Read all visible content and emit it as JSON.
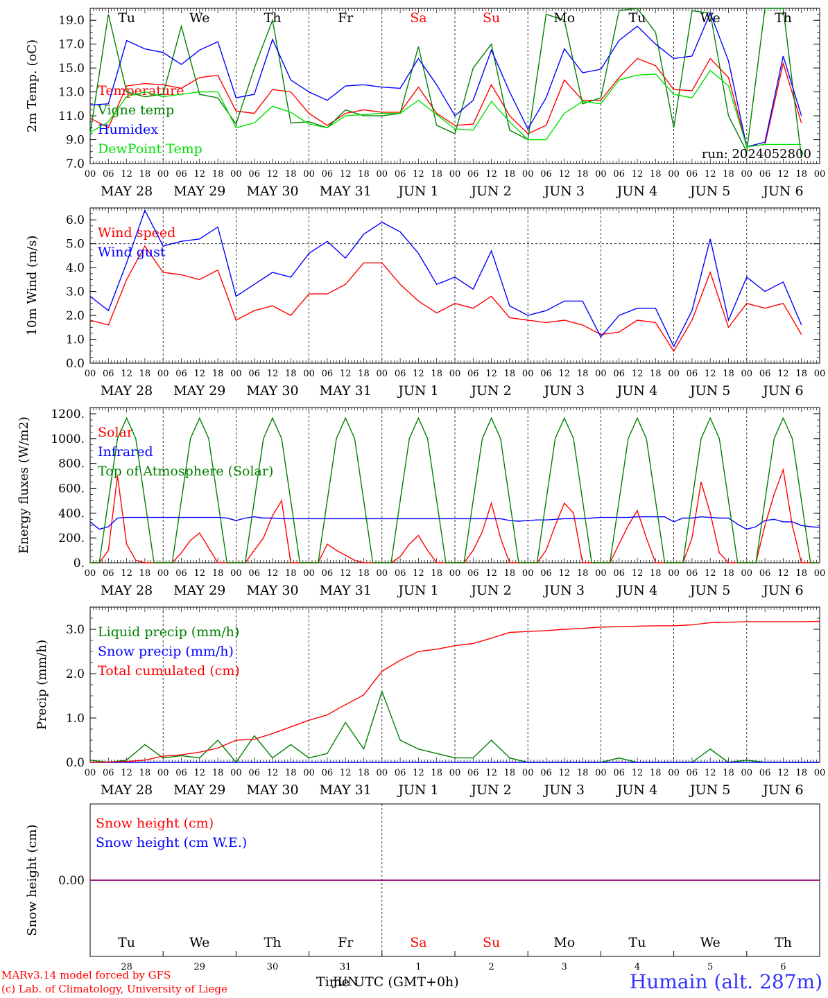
{
  "colors": {
    "red": "#ff0000",
    "blue": "#0000ff",
    "green": "#008000",
    "lightgreen": "#00e000",
    "purple": "#800080",
    "dark": "#000000"
  },
  "run_label": "run: 2024052800",
  "footer": {
    "model": "MARv3.14 model forced by GFS",
    "lab": "(c) Lab. of Climatology, University of Liege",
    "time_axis": "Time UTC (GMT+0h)",
    "station": "Humain (alt. 287m)"
  },
  "days": [
    {
      "name": "Tu",
      "date": "MAY 28",
      "num": "28",
      "weekend": false
    },
    {
      "name": "We",
      "date": "MAY 29",
      "num": "29",
      "weekend": false
    },
    {
      "name": "Th",
      "date": "MAY 30",
      "num": "30",
      "weekend": false
    },
    {
      "name": "Fr",
      "date": "MAY 31",
      "num": "31",
      "weekend": false
    },
    {
      "name": "Sa",
      "date": "JUN  1",
      "num": "1",
      "weekend": true
    },
    {
      "name": "Su",
      "date": "JUN  2",
      "num": "2",
      "weekend": true
    },
    {
      "name": "Mo",
      "date": "JUN  3",
      "num": "3",
      "weekend": false
    },
    {
      "name": "Tu",
      "date": "JUN  4",
      "num": "4",
      "weekend": false
    },
    {
      "name": "We",
      "date": "JUN  5",
      "num": "5",
      "weekend": false
    },
    {
      "name": "Th",
      "date": "JUN  6",
      "num": "6",
      "weekend": false
    }
  ],
  "month_label_bottom": "JUN",
  "hour_ticks": [
    "00",
    "06",
    "12",
    "18"
  ],
  "chart_data": [
    {
      "type": "line",
      "ylabel": "2m Temp. (oC)",
      "ylim": [
        7,
        20
      ],
      "yticks": [
        "7.0",
        "9.0",
        "11.0",
        "13.0",
        "15.0",
        "17.0",
        "19.0"
      ],
      "x_hours": [
        0,
        6,
        12,
        18,
        24,
        30,
        36,
        42,
        48,
        54,
        60,
        66,
        72,
        78,
        84,
        90,
        96,
        102,
        108,
        114,
        120,
        126,
        132,
        138,
        144,
        150,
        156,
        162,
        168,
        174,
        180,
        186,
        192,
        198,
        204,
        210,
        216,
        222,
        228,
        234
      ],
      "series": [
        {
          "name": "Temperature",
          "color": "#ff0000",
          "values": [
            10.8,
            10.0,
            13.5,
            13.7,
            13.6,
            13.3,
            14.2,
            14.4,
            11.4,
            11.2,
            13.2,
            13.0,
            11.2,
            10.2,
            11.2,
            11.5,
            11.3,
            11.3,
            13.4,
            11.2,
            10.2,
            10.3,
            13.6,
            11.0,
            9.5,
            10.2,
            14.0,
            12.3,
            12.3,
            14.2,
            15.8,
            15.2,
            13.2,
            13.1,
            15.8,
            14.2,
            8.4,
            8.6,
            15.4,
            10.4
          ]
        },
        {
          "name": "Vigne temp",
          "color": "#008000",
          "values": [
            9.5,
            19.5,
            13.0,
            12.6,
            12.8,
            18.5,
            12.8,
            12.5,
            10.3,
            15.0,
            19.0,
            10.4,
            10.5,
            10.0,
            11.5,
            11.0,
            11.0,
            11.2,
            16.8,
            10.2,
            9.5,
            15.0,
            17.0,
            9.8,
            9.0,
            19.5,
            19.0,
            12.0,
            12.5,
            19.8,
            20.0,
            18.0,
            10.0,
            19.8,
            19.6,
            11.0,
            8.0,
            20.0,
            20.0,
            7.5
          ]
        },
        {
          "name": "Humidex",
          "color": "#0000ff",
          "values": [
            11.9,
            12.0,
            17.3,
            16.6,
            16.3,
            15.3,
            16.5,
            17.2,
            12.5,
            12.8,
            17.4,
            14.0,
            13.0,
            12.3,
            13.5,
            13.6,
            13.4,
            13.3,
            15.8,
            13.6,
            11.0,
            12.3,
            16.5,
            13.0,
            9.9,
            12.5,
            16.6,
            14.6,
            14.9,
            17.3,
            18.5,
            17.0,
            15.8,
            16.0,
            19.6,
            15.6,
            8.4,
            8.8,
            16.0,
            11.0
          ]
        },
        {
          "name": "DewPoint Temp",
          "color": "#00e000",
          "values": [
            9.6,
            10.5,
            12.6,
            13.0,
            12.6,
            12.8,
            13.0,
            13.0,
            10.0,
            10.4,
            11.8,
            11.3,
            10.3,
            10.0,
            11.0,
            11.1,
            11.2,
            11.2,
            12.3,
            11.1,
            9.9,
            9.8,
            12.2,
            10.5,
            9.0,
            9.0,
            11.2,
            12.2,
            12.0,
            14.0,
            14.4,
            14.5,
            12.8,
            12.5,
            14.8,
            13.5,
            8.4,
            8.6,
            8.6,
            8.6
          ]
        }
      ]
    },
    {
      "type": "line",
      "ylabel": "10m Wind (m/s)",
      "ylim": [
        0,
        6.5
      ],
      "yticks": [
        "0.0",
        "1.0",
        "2.0",
        "3.0",
        "4.0",
        "5.0",
        "6.0"
      ],
      "x_hours": [
        0,
        6,
        12,
        18,
        24,
        30,
        36,
        42,
        48,
        54,
        60,
        66,
        72,
        78,
        84,
        90,
        96,
        102,
        108,
        114,
        120,
        126,
        132,
        138,
        144,
        150,
        156,
        162,
        168,
        174,
        180,
        186,
        192,
        198,
        204,
        210,
        216,
        222,
        228,
        234
      ],
      "series": [
        {
          "name": "Wind speed",
          "color": "#ff0000",
          "values": [
            1.8,
            1.6,
            3.5,
            4.9,
            3.8,
            3.7,
            3.5,
            3.9,
            1.8,
            2.2,
            2.4,
            2.0,
            2.9,
            2.9,
            3.3,
            4.2,
            4.2,
            3.3,
            2.6,
            2.1,
            2.5,
            2.3,
            2.8,
            1.9,
            1.8,
            1.7,
            1.8,
            1.6,
            1.2,
            1.3,
            1.8,
            1.7,
            0.5,
            1.8,
            3.8,
            1.5,
            2.5,
            2.3,
            2.5,
            1.2
          ]
        },
        {
          "name": "Wind gust",
          "color": "#0000ff",
          "values": [
            2.8,
            2.2,
            4.2,
            6.4,
            4.9,
            5.1,
            5.2,
            5.7,
            2.8,
            3.3,
            3.8,
            3.6,
            4.6,
            5.1,
            4.4,
            5.4,
            5.9,
            5.5,
            4.6,
            3.3,
            3.6,
            3.1,
            4.7,
            2.4,
            2.0,
            2.2,
            2.6,
            2.6,
            1.1,
            2.0,
            2.3,
            2.3,
            0.7,
            2.2,
            5.2,
            1.8,
            3.6,
            3.0,
            3.4,
            1.6
          ]
        }
      ]
    },
    {
      "type": "line",
      "ylabel": "Energy fluxes (W/m2)",
      "ylim": [
        0,
        1250
      ],
      "yticks": [
        "0.",
        "200.",
        "400.",
        "600.",
        "800.",
        "1000.",
        "1200."
      ],
      "x_hours": [
        0,
        3,
        6,
        9,
        12,
        15,
        18,
        21,
        24,
        27,
        30,
        33,
        36,
        39,
        42,
        45,
        48,
        51,
        54,
        57,
        60,
        63,
        66,
        69,
        72,
        75,
        78,
        81,
        84,
        87,
        90,
        93,
        96,
        99,
        102,
        105,
        108,
        111,
        114,
        117,
        120,
        123,
        126,
        129,
        132,
        135,
        138,
        141,
        144,
        147,
        150,
        153,
        156,
        159,
        162,
        165,
        168,
        171,
        174,
        177,
        180,
        183,
        186,
        189,
        192,
        195,
        198,
        201,
        204,
        207,
        210,
        213,
        216,
        219,
        222,
        225,
        228,
        231,
        234,
        237,
        240
      ],
      "series": [
        {
          "name": "Solar",
          "color": "#ff0000",
          "values": [
            0,
            0,
            100,
            700,
            150,
            20,
            0,
            0,
            0,
            0,
            80,
            180,
            240,
            120,
            0,
            0,
            0,
            0,
            100,
            200,
            380,
            500,
            0,
            0,
            0,
            0,
            150,
            100,
            60,
            20,
            0,
            0,
            0,
            0,
            50,
            150,
            220,
            100,
            0,
            0,
            0,
            0,
            100,
            250,
            480,
            200,
            0,
            0,
            0,
            0,
            100,
            300,
            480,
            400,
            0,
            0,
            0,
            0,
            150,
            300,
            420,
            200,
            0,
            0,
            0,
            0,
            200,
            650,
            400,
            80,
            0,
            0,
            0,
            0,
            300,
            550,
            750,
            300,
            0,
            0,
            0
          ]
        },
        {
          "name": "Infrared",
          "color": "#0000ff",
          "values": [
            330,
            270,
            290,
            360,
            365,
            365,
            365,
            365,
            365,
            365,
            365,
            365,
            365,
            365,
            365,
            360,
            340,
            360,
            370,
            360,
            360,
            355,
            355,
            355,
            355,
            355,
            355,
            355,
            355,
            355,
            355,
            355,
            355,
            355,
            355,
            355,
            355,
            355,
            355,
            355,
            355,
            355,
            355,
            355,
            355,
            355,
            340,
            335,
            340,
            345,
            345,
            350,
            355,
            355,
            355,
            360,
            365,
            365,
            365,
            365,
            370,
            370,
            370,
            370,
            330,
            360,
            360,
            370,
            365,
            360,
            360,
            310,
            270,
            290,
            340,
            350,
            330,
            330,
            300,
            290,
            285
          ]
        },
        {
          "name": "Top of Atmosphere (Solar)",
          "color": "#008000",
          "values": [
            0,
            0,
            500,
            1000,
            1165,
            1000,
            500,
            0,
            0,
            0,
            500,
            1000,
            1165,
            1000,
            500,
            0,
            0,
            0,
            500,
            1000,
            1165,
            1000,
            500,
            0,
            0,
            0,
            500,
            1000,
            1165,
            1000,
            500,
            0,
            0,
            0,
            500,
            1000,
            1165,
            1000,
            500,
            0,
            0,
            0,
            500,
            1000,
            1165,
            1000,
            500,
            0,
            0,
            0,
            500,
            1000,
            1165,
            1000,
            500,
            0,
            0,
            0,
            500,
            1000,
            1165,
            1000,
            500,
            0,
            0,
            0,
            500,
            1000,
            1165,
            1000,
            500,
            0,
            0,
            0,
            500,
            1000,
            1165,
            1000,
            500,
            0,
            0
          ]
        }
      ]
    },
    {
      "type": "line",
      "ylabel": "Precip (mm/h)",
      "ylim": [
        0,
        3.5
      ],
      "yticks": [
        "0.0",
        "1.0",
        "2.0",
        "3.0"
      ],
      "x_hours": [
        0,
        6,
        12,
        18,
        24,
        30,
        36,
        42,
        48,
        54,
        60,
        66,
        72,
        78,
        84,
        90,
        96,
        102,
        108,
        114,
        120,
        126,
        132,
        138,
        144,
        150,
        156,
        162,
        168,
        174,
        180,
        186,
        192,
        198,
        204,
        210,
        216,
        222,
        228,
        234,
        240
      ],
      "series": [
        {
          "name": "Liquid precip (mm/h)",
          "color": "#008000",
          "values": [
            0.05,
            0.0,
            0.05,
            0.4,
            0.1,
            0.15,
            0.1,
            0.5,
            0.0,
            0.6,
            0.1,
            0.4,
            0.1,
            0.2,
            0.9,
            0.3,
            1.6,
            0.5,
            0.3,
            0.2,
            0.1,
            0.1,
            0.5,
            0.1,
            0.0,
            0.0,
            0.0,
            0.0,
            0.0,
            0.1,
            0.0,
            0.0,
            0.0,
            0.0,
            0.3,
            0.0,
            0.05,
            0.0,
            0.0,
            0.0,
            0.0
          ]
        },
        {
          "name": "Snow precip (mm/h)",
          "color": "#0000ff",
          "values": [
            0,
            0,
            0,
            0,
            0,
            0,
            0,
            0,
            0,
            0,
            0,
            0,
            0,
            0,
            0,
            0,
            0,
            0,
            0,
            0,
            0,
            0,
            0,
            0,
            0,
            0,
            0,
            0,
            0,
            0,
            0,
            0,
            0,
            0,
            0,
            0,
            0,
            0,
            0,
            0,
            0
          ]
        },
        {
          "name": "Total cumulated (cm)",
          "color": "#ff0000",
          "values": [
            0.0,
            0.01,
            0.02,
            0.05,
            0.14,
            0.17,
            0.23,
            0.32,
            0.5,
            0.52,
            0.65,
            0.8,
            0.95,
            1.07,
            1.3,
            1.52,
            2.05,
            2.3,
            2.5,
            2.55,
            2.63,
            2.68,
            2.8,
            2.93,
            2.95,
            2.97,
            3.0,
            3.02,
            3.05,
            3.06,
            3.07,
            3.08,
            3.08,
            3.1,
            3.15,
            3.16,
            3.17,
            3.17,
            3.17,
            3.17,
            3.18
          ]
        }
      ]
    },
    {
      "type": "line",
      "ylabel": "Snow height (cm)",
      "ylim": [
        -1,
        1
      ],
      "yticks": [
        "0.00"
      ],
      "x_hours": [
        0,
        240
      ],
      "series": [
        {
          "name": "Snow height (cm)",
          "color": "#ff0000",
          "values": [
            0,
            0
          ]
        },
        {
          "name": "Snow height (cm W.E.)",
          "color": "#0000ff",
          "values": [
            0,
            0
          ]
        }
      ]
    }
  ]
}
